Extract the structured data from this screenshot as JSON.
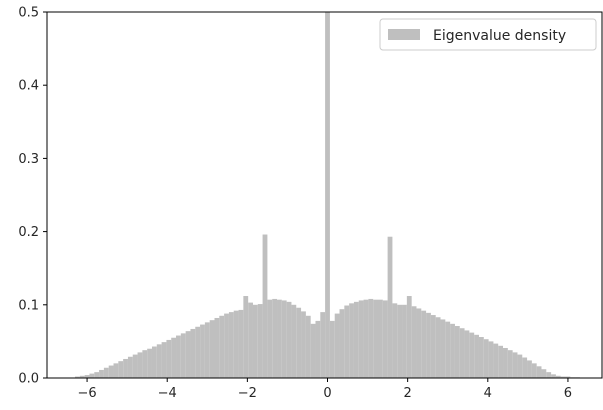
{
  "chart_data": {
    "type": "bar",
    "title": "",
    "xlabel": "",
    "ylabel": "",
    "xlim": [
      -7.0,
      6.85
    ],
    "ylim": [
      0,
      0.5
    ],
    "x_ticks": [
      -6,
      -4,
      -2,
      0,
      2,
      4,
      6
    ],
    "x_tick_labels": [
      "−6",
      "−4",
      "−2",
      "0",
      "2",
      "4",
      "6"
    ],
    "y_ticks": [
      0.0,
      0.1,
      0.2,
      0.3,
      0.4,
      0.5
    ],
    "y_tick_labels": [
      "0.0",
      "0.1",
      "0.2",
      "0.3",
      "0.4",
      "0.5"
    ],
    "grid": false,
    "legend_position": "top-right",
    "bin_width": 0.12,
    "series": [
      {
        "name": "Eigenvalue density",
        "color": "#bfbfbf",
        "x": [
          -6.24,
          -6.12,
          -6.0,
          -5.88,
          -5.76,
          -5.64,
          -5.52,
          -5.4,
          -5.28,
          -5.16,
          -5.04,
          -4.92,
          -4.8,
          -4.68,
          -4.56,
          -4.44,
          -4.32,
          -4.2,
          -4.08,
          -3.96,
          -3.84,
          -3.72,
          -3.6,
          -3.48,
          -3.36,
          -3.24,
          -3.12,
          -3.0,
          -2.88,
          -2.76,
          -2.64,
          -2.52,
          -2.4,
          -2.28,
          -2.16,
          -2.04,
          -1.92,
          -1.8,
          -1.68,
          -1.56,
          -1.44,
          -1.32,
          -1.2,
          -1.08,
          -0.96,
          -0.84,
          -0.72,
          -0.6,
          -0.48,
          -0.36,
          -0.24,
          -0.12,
          0.0,
          0.12,
          0.24,
          0.36,
          0.48,
          0.6,
          0.72,
          0.84,
          0.96,
          1.08,
          1.2,
          1.32,
          1.44,
          1.56,
          1.68,
          1.8,
          1.92,
          2.04,
          2.16,
          2.28,
          2.4,
          2.52,
          2.64,
          2.76,
          2.88,
          3.0,
          3.12,
          3.24,
          3.36,
          3.48,
          3.6,
          3.72,
          3.84,
          3.96,
          4.08,
          4.2,
          4.32,
          4.44,
          4.56,
          4.68,
          4.8,
          4.92,
          5.04,
          5.16,
          5.28,
          5.4,
          5.52,
          5.64,
          5.76,
          5.88,
          6.0,
          6.12,
          6.24
        ],
        "values": [
          0.002,
          0.003,
          0.004,
          0.006,
          0.008,
          0.011,
          0.014,
          0.017,
          0.02,
          0.023,
          0.026,
          0.029,
          0.032,
          0.035,
          0.038,
          0.04,
          0.043,
          0.046,
          0.049,
          0.052,
          0.055,
          0.058,
          0.061,
          0.064,
          0.067,
          0.07,
          0.073,
          0.076,
          0.079,
          0.082,
          0.085,
          0.088,
          0.09,
          0.092,
          0.093,
          0.112,
          0.103,
          0.1,
          0.101,
          0.196,
          0.107,
          0.108,
          0.107,
          0.106,
          0.104,
          0.1,
          0.096,
          0.091,
          0.085,
          0.074,
          0.078,
          0.09,
          0.5,
          0.078,
          0.088,
          0.094,
          0.099,
          0.102,
          0.104,
          0.106,
          0.107,
          0.108,
          0.107,
          0.107,
          0.106,
          0.193,
          0.102,
          0.1,
          0.1,
          0.112,
          0.098,
          0.095,
          0.092,
          0.089,
          0.086,
          0.083,
          0.08,
          0.077,
          0.074,
          0.071,
          0.068,
          0.065,
          0.062,
          0.059,
          0.056,
          0.053,
          0.05,
          0.047,
          0.044,
          0.041,
          0.038,
          0.035,
          0.032,
          0.028,
          0.024,
          0.02,
          0.016,
          0.012,
          0.008,
          0.005,
          0.003,
          0.002,
          0.002,
          0.001,
          0.001
        ]
      }
    ]
  },
  "legend": {
    "label": "Eigenvalue density",
    "swatch_color": "#bfbfbf"
  },
  "colors": {
    "bar": "#bfbfbf",
    "axis": "#000000",
    "text": "#262626"
  }
}
